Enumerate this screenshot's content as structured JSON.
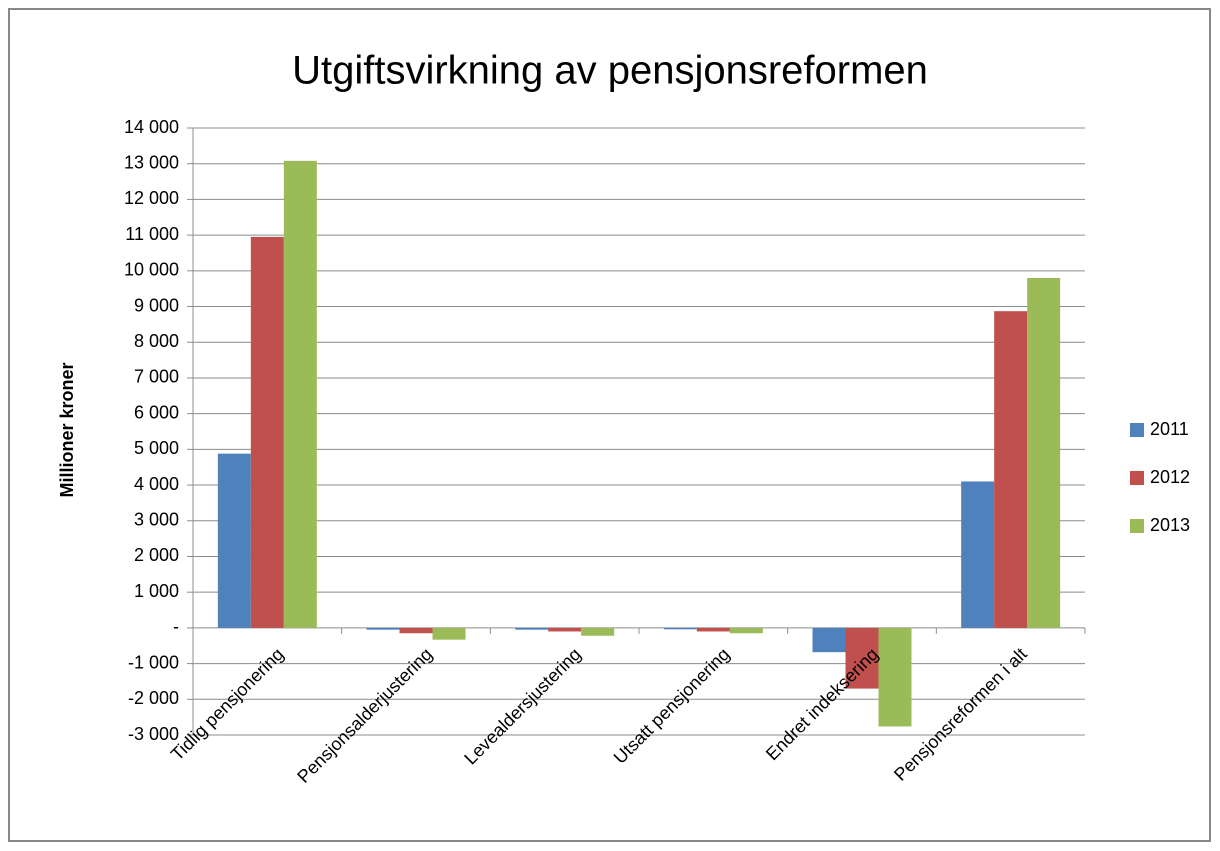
{
  "chart_data": {
    "type": "bar",
    "title": "Utgiftsvirkning av pensjonsreformen",
    "y_axis_label": "Millioner kroner",
    "categories": [
      "Tidlig pensjonering",
      "Pensjonsalderjustering",
      "Levealdersjustering",
      "Utsatt pensjonering",
      "Endret indeksering",
      "Pensjonsreformen i alt"
    ],
    "series": [
      {
        "name": "2011",
        "color": "#4f81bd",
        "values": [
          4880,
          -50,
          -50,
          -40,
          -680,
          4100
        ]
      },
      {
        "name": "2012",
        "color": "#c0504d",
        "values": [
          10950,
          -150,
          -100,
          -100,
          -1700,
          8870
        ]
      },
      {
        "name": "2013",
        "color": "#9bbb59",
        "values": [
          13080,
          -330,
          -220,
          -150,
          -2760,
          9800
        ]
      }
    ],
    "ylim": [
      -3000,
      14000
    ],
    "yticks": [
      {
        "value": 14000,
        "label": "14 000"
      },
      {
        "value": 13000,
        "label": "13 000"
      },
      {
        "value": 12000,
        "label": "12 000"
      },
      {
        "value": 11000,
        "label": "11 000"
      },
      {
        "value": 10000,
        "label": "10 000"
      },
      {
        "value": 9000,
        "label": "9 000"
      },
      {
        "value": 8000,
        "label": "8 000"
      },
      {
        "value": 7000,
        "label": "7 000"
      },
      {
        "value": 6000,
        "label": "6 000"
      },
      {
        "value": 5000,
        "label": "5 000"
      },
      {
        "value": 4000,
        "label": "4 000"
      },
      {
        "value": 3000,
        "label": "3 000"
      },
      {
        "value": 2000,
        "label": "2 000"
      },
      {
        "value": 1000,
        "label": "1 000"
      },
      {
        "value": 0,
        "label": "-"
      },
      {
        "value": -1000,
        "label": "-1 000"
      },
      {
        "value": -2000,
        "label": "-2 000"
      },
      {
        "value": -3000,
        "label": "-3 000"
      }
    ],
    "grid": true,
    "legend": "right"
  }
}
